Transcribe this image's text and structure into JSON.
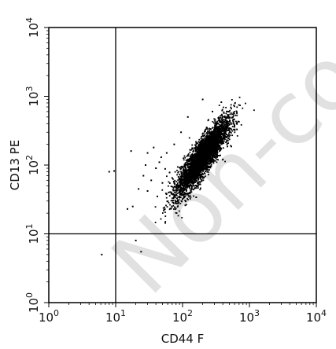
{
  "chart_data": {
    "type": "scatter",
    "xlabel": "CD44 F",
    "ylabel": "CD13 PE",
    "scale": "log",
    "xlim": [
      1,
      10000
    ],
    "ylim": [
      1,
      10000
    ],
    "xticks": [
      {
        "base": "10",
        "exp": "0"
      },
      {
        "base": "10",
        "exp": "1"
      },
      {
        "base": "10",
        "exp": "2"
      },
      {
        "base": "10",
        "exp": "3"
      },
      {
        "base": "10",
        "exp": "4"
      }
    ],
    "yticks": [
      {
        "base": "10",
        "exp": "0"
      },
      {
        "base": "10",
        "exp": "1"
      },
      {
        "base": "10",
        "exp": "2"
      },
      {
        "base": "10",
        "exp": "3"
      },
      {
        "base": "10",
        "exp": "4"
      }
    ],
    "quadrant_gates": {
      "x": 10,
      "y": 10
    },
    "main_population": {
      "center_x": 200,
      "center_y": 130,
      "note_events": "dense cluster"
    },
    "scatter_points": [
      [
        8.0,
        80
      ],
      [
        9.5,
        82
      ],
      [
        6.2,
        5.0
      ],
      [
        17,
        160
      ],
      [
        22,
        45
      ],
      [
        28,
        100
      ],
      [
        30,
        42
      ],
      [
        18,
        25
      ],
      [
        15,
        23
      ],
      [
        34,
        60
      ],
      [
        42,
        35
      ],
      [
        50,
        55
      ],
      [
        58,
        150
      ],
      [
        45,
        110
      ],
      [
        62,
        40
      ],
      [
        20,
        8.0
      ],
      [
        24,
        5.5
      ],
      [
        75,
        200
      ],
      [
        70,
        65
      ],
      [
        37,
        180
      ],
      [
        55,
        88
      ],
      [
        64,
        78
      ],
      [
        85,
        30
      ],
      [
        95,
        300
      ],
      [
        120,
        500
      ],
      [
        110,
        26
      ],
      [
        280,
        600
      ],
      [
        500,
        260
      ],
      [
        650,
        330
      ],
      [
        380,
        820
      ],
      [
        200,
        900
      ],
      [
        160,
        34
      ],
      [
        30,
        150
      ],
      [
        48,
        130
      ],
      [
        26,
        70
      ],
      [
        40,
        90
      ]
    ],
    "watermark": "Non-con"
  },
  "colors": {
    "points": "#000000",
    "axes": "#000000",
    "watermark": "#bdbdbd"
  }
}
